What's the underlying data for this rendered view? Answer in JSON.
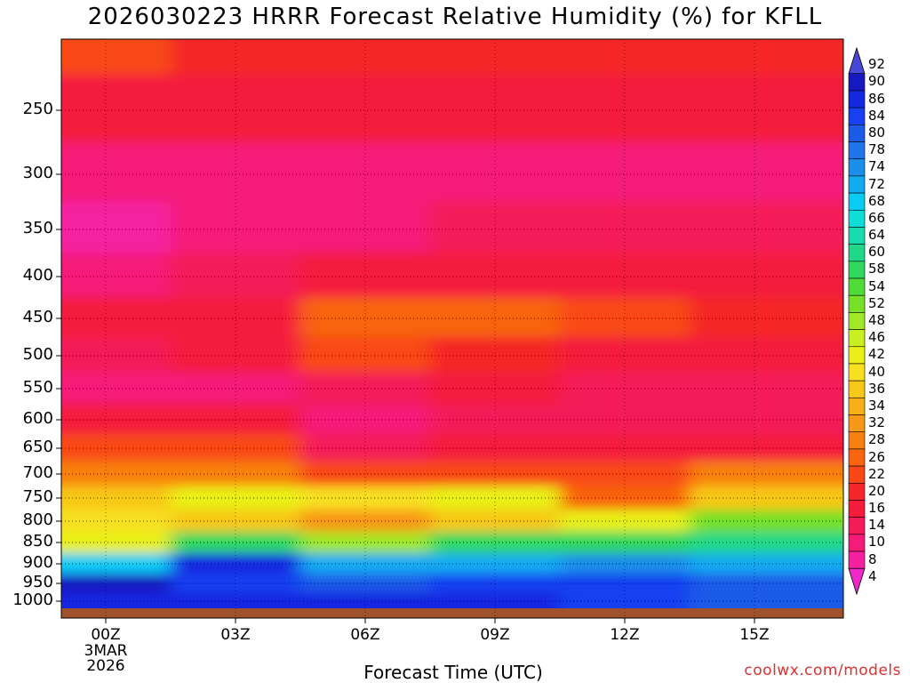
{
  "chart_data": {
    "type": "heatmap",
    "title": "2026030223 HRRR Forecast Relative Humidity (%) for KFLL",
    "xlabel": "Forecast Time (UTC)",
    "ylabel": "",
    "y_axis": "pressure (hPa), inverted",
    "y_ticks": [
      250,
      300,
      350,
      400,
      450,
      500,
      550,
      600,
      650,
      700,
      750,
      800,
      850,
      900,
      950,
      1000
    ],
    "x_ticks": [
      "00Z",
      "03Z",
      "06Z",
      "09Z",
      "12Z",
      "15Z"
    ],
    "x_date": [
      "3MAR",
      "2026"
    ],
    "colorbar_levels": [
      92,
      90,
      86,
      84,
      80,
      78,
      74,
      72,
      68,
      66,
      64,
      60,
      58,
      54,
      52,
      48,
      46,
      42,
      40,
      36,
      34,
      32,
      28,
      26,
      22,
      20,
      16,
      14,
      10,
      8,
      4
    ],
    "colorbar_colors": [
      "#4848d8",
      "#1818c0",
      "#1428e0",
      "#1840f0",
      "#1c5ae8",
      "#1e74e8",
      "#1a8ee8",
      "#12aaf0",
      "#08ccf4",
      "#10dcd8",
      "#18dcb0",
      "#20d888",
      "#30d860",
      "#50dc38",
      "#78e028",
      "#a0e828",
      "#c8f020",
      "#e8f018",
      "#f8e020",
      "#f8c818",
      "#f8b018",
      "#f89818",
      "#f88010",
      "#f86410",
      "#f84818",
      "#f42828",
      "#f41c3c",
      "#f41c58",
      "#f41c78",
      "#f420a0",
      "#f028c8"
    ],
    "profile_pressure": [
      200,
      250,
      300,
      350,
      400,
      450,
      500,
      550,
      600,
      650,
      700,
      750,
      800,
      850,
      900,
      950,
      1000
    ],
    "profile_rh": {
      "00Z": [
        22,
        16,
        12,
        8,
        12,
        18,
        14,
        12,
        16,
        24,
        28,
        36,
        40,
        44,
        70,
        90,
        86
      ],
      "03Z": [
        20,
        16,
        12,
        12,
        14,
        18,
        16,
        12,
        16,
        22,
        28,
        44,
        38,
        58,
        88,
        84,
        86
      ],
      "06Z": [
        20,
        16,
        12,
        12,
        16,
        26,
        22,
        14,
        12,
        14,
        22,
        40,
        32,
        50,
        72,
        80,
        88
      ],
      "09Z": [
        20,
        16,
        12,
        14,
        18,
        26,
        20,
        16,
        14,
        16,
        22,
        42,
        36,
        58,
        72,
        84,
        88
      ],
      "12Z": [
        20,
        16,
        12,
        14,
        16,
        22,
        18,
        14,
        14,
        16,
        24,
        26,
        44,
        58,
        76,
        84,
        84
      ],
      "15Z": [
        20,
        16,
        12,
        14,
        16,
        20,
        18,
        14,
        14,
        16,
        28,
        36,
        52,
        60,
        72,
        82,
        80
      ]
    },
    "grid": true
  }
}
